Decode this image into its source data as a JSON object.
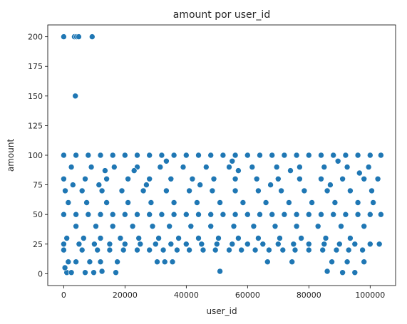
{
  "chart_data": {
    "type": "scatter",
    "title": "amount por user_id",
    "xlabel": "user_id",
    "ylabel": "amount",
    "xlim": [
      -5200,
      108300
    ],
    "ylim": [
      -10,
      210
    ],
    "xticks": [
      0,
      20000,
      40000,
      60000,
      80000,
      100000
    ],
    "yticks": [
      0,
      25,
      50,
      75,
      100,
      125,
      150,
      175,
      200
    ],
    "grid": false,
    "legend": "none",
    "point_color": "#1f77b4",
    "point_edge_color": "#ffffff",
    "series": [
      {
        "points": [
          [
            0,
            200
          ],
          [
            3500,
            200
          ],
          [
            4200,
            200
          ],
          [
            4900,
            200
          ],
          [
            9300,
            200
          ],
          [
            3800,
            150
          ],
          [
            1000,
            1
          ],
          [
            2500,
            1
          ],
          [
            7000,
            1
          ],
          [
            9800,
            1
          ],
          [
            12500,
            2
          ],
          [
            17000,
            1
          ],
          [
            51000,
            2
          ],
          [
            86000,
            2
          ],
          [
            91000,
            1
          ],
          [
            95000,
            1
          ],
          [
            400,
            5
          ],
          [
            1500,
            10
          ],
          [
            4000,
            10
          ],
          [
            8500,
            10
          ],
          [
            12000,
            10
          ],
          [
            17500,
            10
          ],
          [
            30500,
            10
          ],
          [
            33000,
            10
          ],
          [
            35500,
            10
          ],
          [
            66500,
            10
          ],
          [
            74500,
            10
          ],
          [
            87500,
            10
          ],
          [
            92500,
            10
          ],
          [
            98000,
            10
          ],
          [
            0,
            20
          ],
          [
            6000,
            20
          ],
          [
            11000,
            20
          ],
          [
            15000,
            20
          ],
          [
            19500,
            20
          ],
          [
            24000,
            20
          ],
          [
            28000,
            20
          ],
          [
            32500,
            20
          ],
          [
            37000,
            20
          ],
          [
            41000,
            20
          ],
          [
            45500,
            20
          ],
          [
            49500,
            20
          ],
          [
            54000,
            20
          ],
          [
            58000,
            20
          ],
          [
            62500,
            20
          ],
          [
            67000,
            20
          ],
          [
            71500,
            20
          ],
          [
            75500,
            20
          ],
          [
            80000,
            20
          ],
          [
            84500,
            20
          ],
          [
            89000,
            20
          ],
          [
            93000,
            20
          ],
          [
            97500,
            20
          ],
          [
            0,
            25
          ],
          [
            5000,
            25
          ],
          [
            10000,
            25
          ],
          [
            15000,
            25
          ],
          [
            20000,
            25
          ],
          [
            25000,
            25
          ],
          [
            30000,
            25
          ],
          [
            35000,
            25
          ],
          [
            40000,
            25
          ],
          [
            45000,
            25
          ],
          [
            50000,
            25
          ],
          [
            55000,
            25
          ],
          [
            60000,
            25
          ],
          [
            65000,
            25
          ],
          [
            70000,
            25
          ],
          [
            75000,
            25
          ],
          [
            80000,
            25
          ],
          [
            85000,
            25
          ],
          [
            90000,
            25
          ],
          [
            95000,
            25
          ],
          [
            100000,
            25
          ],
          [
            103000,
            25
          ],
          [
            1000,
            30
          ],
          [
            6500,
            30
          ],
          [
            12000,
            30
          ],
          [
            18500,
            30
          ],
          [
            24500,
            30
          ],
          [
            31000,
            30
          ],
          [
            37500,
            30
          ],
          [
            44000,
            30
          ],
          [
            50500,
            30
          ],
          [
            57000,
            30
          ],
          [
            63500,
            30
          ],
          [
            70500,
            30
          ],
          [
            77500,
            30
          ],
          [
            85500,
            30
          ],
          [
            93500,
            30
          ],
          [
            4000,
            40
          ],
          [
            10500,
            40
          ],
          [
            16000,
            40
          ],
          [
            22500,
            40
          ],
          [
            29000,
            40
          ],
          [
            34500,
            40
          ],
          [
            41500,
            40
          ],
          [
            48000,
            40
          ],
          [
            55500,
            40
          ],
          [
            62000,
            40
          ],
          [
            69000,
            40
          ],
          [
            76000,
            40
          ],
          [
            83000,
            40
          ],
          [
            90500,
            40
          ],
          [
            98000,
            40
          ],
          [
            0,
            50
          ],
          [
            4000,
            50
          ],
          [
            8000,
            50
          ],
          [
            12000,
            50
          ],
          [
            16000,
            50
          ],
          [
            20000,
            50
          ],
          [
            24000,
            50
          ],
          [
            28000,
            50
          ],
          [
            32000,
            50
          ],
          [
            36000,
            50
          ],
          [
            40000,
            50
          ],
          [
            44000,
            50
          ],
          [
            48000,
            50
          ],
          [
            52000,
            50
          ],
          [
            56000,
            50
          ],
          [
            60000,
            50
          ],
          [
            64000,
            50
          ],
          [
            68000,
            50
          ],
          [
            72000,
            50
          ],
          [
            76000,
            50
          ],
          [
            80000,
            50
          ],
          [
            84000,
            50
          ],
          [
            88000,
            50
          ],
          [
            92000,
            50
          ],
          [
            96000,
            50
          ],
          [
            100000,
            50
          ],
          [
            103500,
            50
          ],
          [
            1500,
            60
          ],
          [
            7500,
            60
          ],
          [
            14000,
            60
          ],
          [
            21000,
            60
          ],
          [
            28500,
            60
          ],
          [
            36000,
            60
          ],
          [
            43500,
            60
          ],
          [
            51000,
            60
          ],
          [
            58500,
            60
          ],
          [
            66000,
            60
          ],
          [
            73500,
            60
          ],
          [
            81000,
            60
          ],
          [
            88500,
            60
          ],
          [
            96000,
            60
          ],
          [
            101000,
            60
          ],
          [
            500,
            70
          ],
          [
            6000,
            70
          ],
          [
            12500,
            70
          ],
          [
            19000,
            70
          ],
          [
            26000,
            70
          ],
          [
            33500,
            70
          ],
          [
            41000,
            70
          ],
          [
            48500,
            70
          ],
          [
            56000,
            70
          ],
          [
            63500,
            70
          ],
          [
            71000,
            70
          ],
          [
            78500,
            70
          ],
          [
            86000,
            70
          ],
          [
            93500,
            70
          ],
          [
            100500,
            70
          ],
          [
            3000,
            75
          ],
          [
            11500,
            75
          ],
          [
            27000,
            75
          ],
          [
            44500,
            75
          ],
          [
            67500,
            75
          ],
          [
            87000,
            75
          ],
          [
            0,
            80
          ],
          [
            7000,
            80
          ],
          [
            14000,
            80
          ],
          [
            21000,
            80
          ],
          [
            28000,
            80
          ],
          [
            35000,
            80
          ],
          [
            42000,
            80
          ],
          [
            49000,
            80
          ],
          [
            56000,
            80
          ],
          [
            63000,
            80
          ],
          [
            70000,
            80
          ],
          [
            77000,
            80
          ],
          [
            84000,
            80
          ],
          [
            91000,
            80
          ],
          [
            98000,
            80
          ],
          [
            102500,
            80
          ],
          [
            2500,
            90
          ],
          [
            9000,
            90
          ],
          [
            16500,
            90
          ],
          [
            24000,
            90
          ],
          [
            31500,
            90
          ],
          [
            39000,
            90
          ],
          [
            46500,
            90
          ],
          [
            54000,
            90
          ],
          [
            61500,
            90
          ],
          [
            69500,
            90
          ],
          [
            77000,
            90
          ],
          [
            85000,
            90
          ],
          [
            92500,
            90
          ],
          [
            99500,
            90
          ],
          [
            0,
            100
          ],
          [
            4000,
            100
          ],
          [
            8000,
            100
          ],
          [
            12000,
            100
          ],
          [
            16000,
            100
          ],
          [
            20000,
            100
          ],
          [
            24000,
            100
          ],
          [
            28000,
            100
          ],
          [
            32000,
            100
          ],
          [
            36000,
            100
          ],
          [
            40000,
            100
          ],
          [
            44000,
            100
          ],
          [
            48000,
            100
          ],
          [
            52000,
            100
          ],
          [
            56000,
            100
          ],
          [
            60000,
            100
          ],
          [
            64000,
            100
          ],
          [
            68000,
            100
          ],
          [
            72000,
            100
          ],
          [
            76000,
            100
          ],
          [
            80000,
            100
          ],
          [
            84000,
            100
          ],
          [
            88000,
            100
          ],
          [
            92000,
            100
          ],
          [
            96000,
            100
          ],
          [
            100000,
            100
          ],
          [
            103500,
            100
          ],
          [
            33500,
            95
          ],
          [
            55000,
            95
          ],
          [
            74000,
            87
          ],
          [
            89500,
            95
          ],
          [
            96500,
            85
          ],
          [
            57000,
            87
          ],
          [
            23000,
            87
          ],
          [
            13500,
            87
          ]
        ]
      }
    ]
  }
}
